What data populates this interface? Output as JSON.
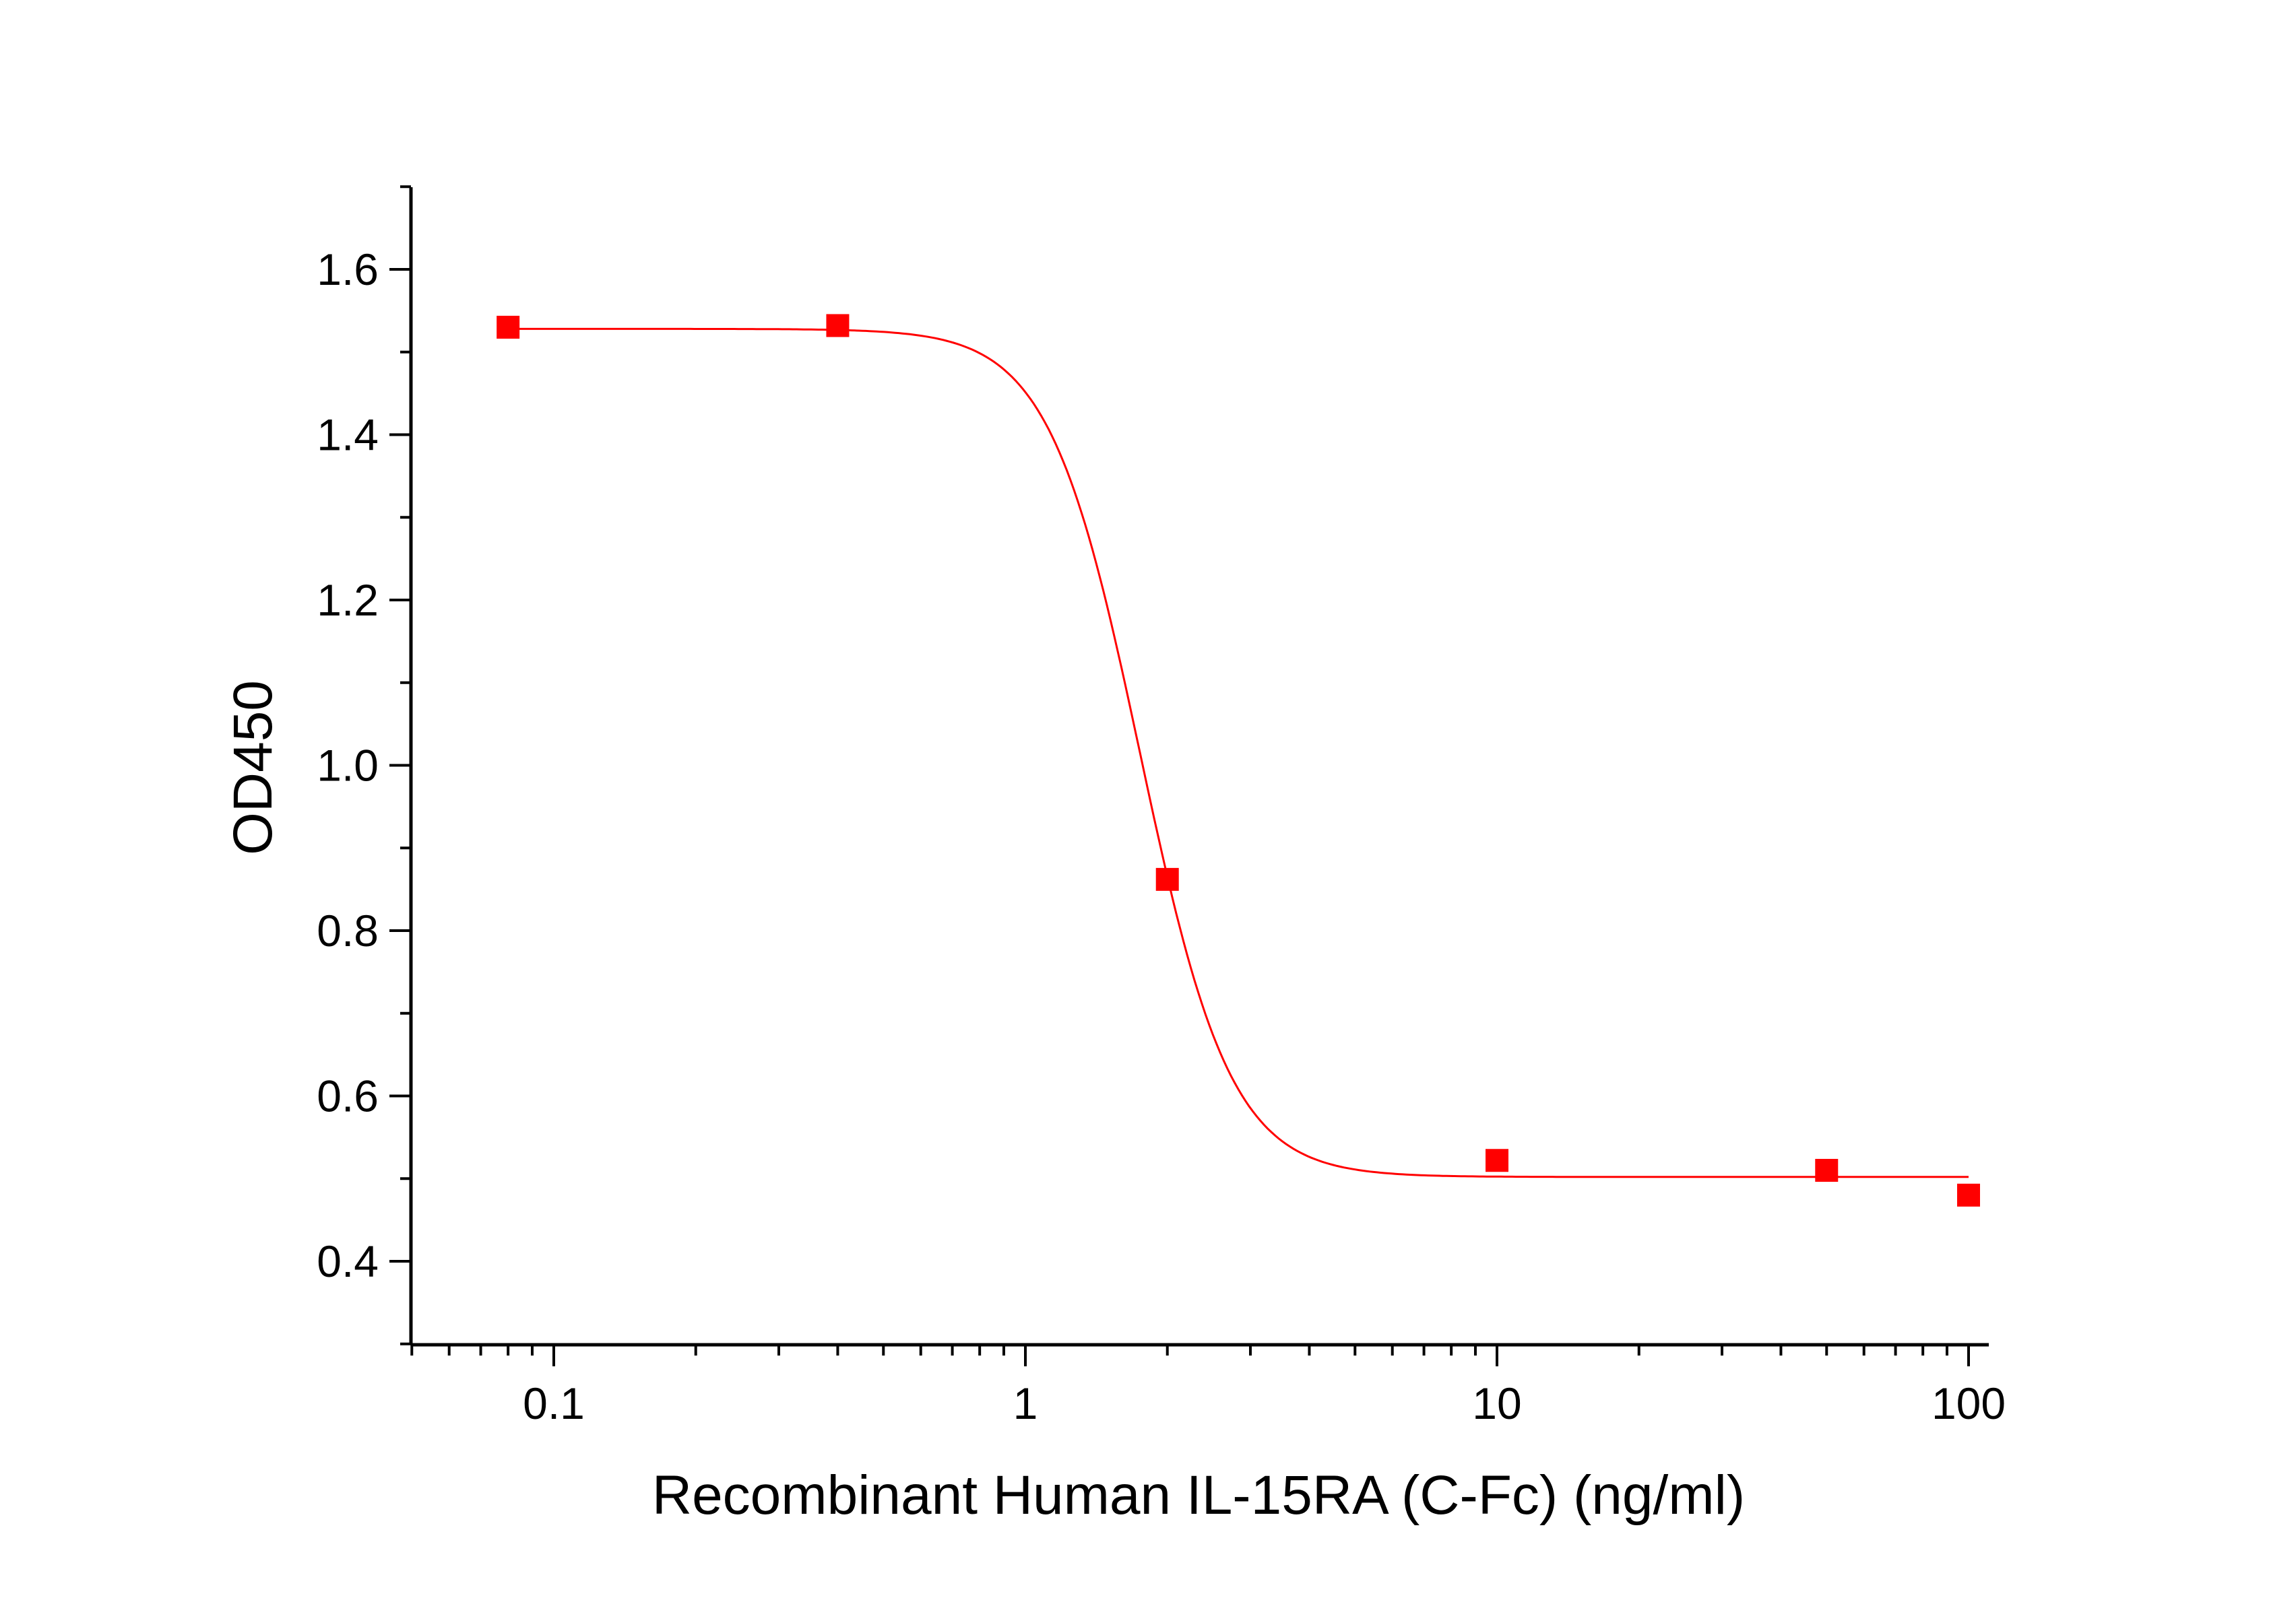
{
  "chart_data": {
    "type": "scatter",
    "title": "",
    "xlabel": "Recombinant Human IL-15RA (C-Fc) (ng/ml)",
    "ylabel": "OD450",
    "x_scale": "log",
    "xlim": [
      0.05,
      110
    ],
    "ylim": [
      0.3,
      1.7
    ],
    "x_ticks": [
      0.1,
      1,
      10,
      100
    ],
    "x_tick_labels": [
      "0.1",
      "1",
      "10",
      "100"
    ],
    "y_ticks": [
      0.4,
      0.6,
      0.8,
      1.0,
      1.2,
      1.4,
      1.6
    ],
    "y_tick_labels": [
      "0.4",
      "0.6",
      "0.8",
      "1.0",
      "1.2",
      "1.4",
      "1.6"
    ],
    "grid": false,
    "legend": "none",
    "series": [
      {
        "x": [
          0.08,
          0.4,
          2,
          10,
          50,
          100
        ],
        "y": [
          1.53,
          1.532,
          0.862,
          0.522,
          0.51,
          0.48
        ],
        "marker": "square",
        "color": "#ff0000"
      }
    ],
    "fit": {
      "model": "4PL",
      "top": 1.528,
      "bottom": 0.502,
      "ec50": 1.75,
      "hill": 4.5,
      "color": "#ff0000"
    }
  }
}
